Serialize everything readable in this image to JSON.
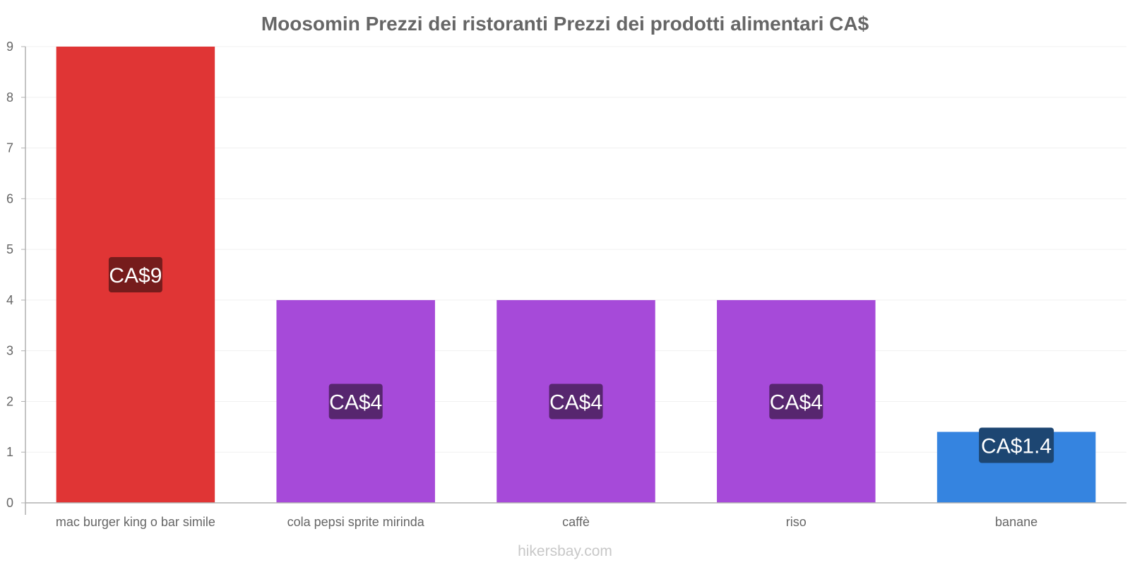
{
  "chart_data": {
    "type": "bar",
    "title": "Moosomin Prezzi dei ristoranti Prezzi dei prodotti alimentari CA$",
    "categories": [
      "mac burger king o bar simile",
      "cola pepsi sprite mirinda",
      "caffè",
      "riso",
      "banane"
    ],
    "values": [
      9,
      4,
      4,
      4,
      1.4
    ],
    "value_labels": [
      "CA$9",
      "CA$4",
      "CA$4",
      "CA$4",
      "CA$1.4"
    ],
    "bar_colors": [
      "#e03535",
      "#a64ad9",
      "#a64ad9",
      "#a64ad9",
      "#3584e0"
    ],
    "label_bg_colors": [
      "#761c1c",
      "#57266f",
      "#57266f",
      "#57266f",
      "#1d4672"
    ],
    "yticks": [
      0,
      1,
      2,
      3,
      4,
      5,
      6,
      7,
      8,
      9
    ],
    "ylim": [
      0,
      9
    ],
    "xlabel": "",
    "ylabel": "",
    "grid": true,
    "legend": "none"
  },
  "watermark": "hikersbay.com",
  "colors": {
    "axis": "#b0b0b0",
    "grid": "#f1f1f1",
    "text": "#666666"
  }
}
